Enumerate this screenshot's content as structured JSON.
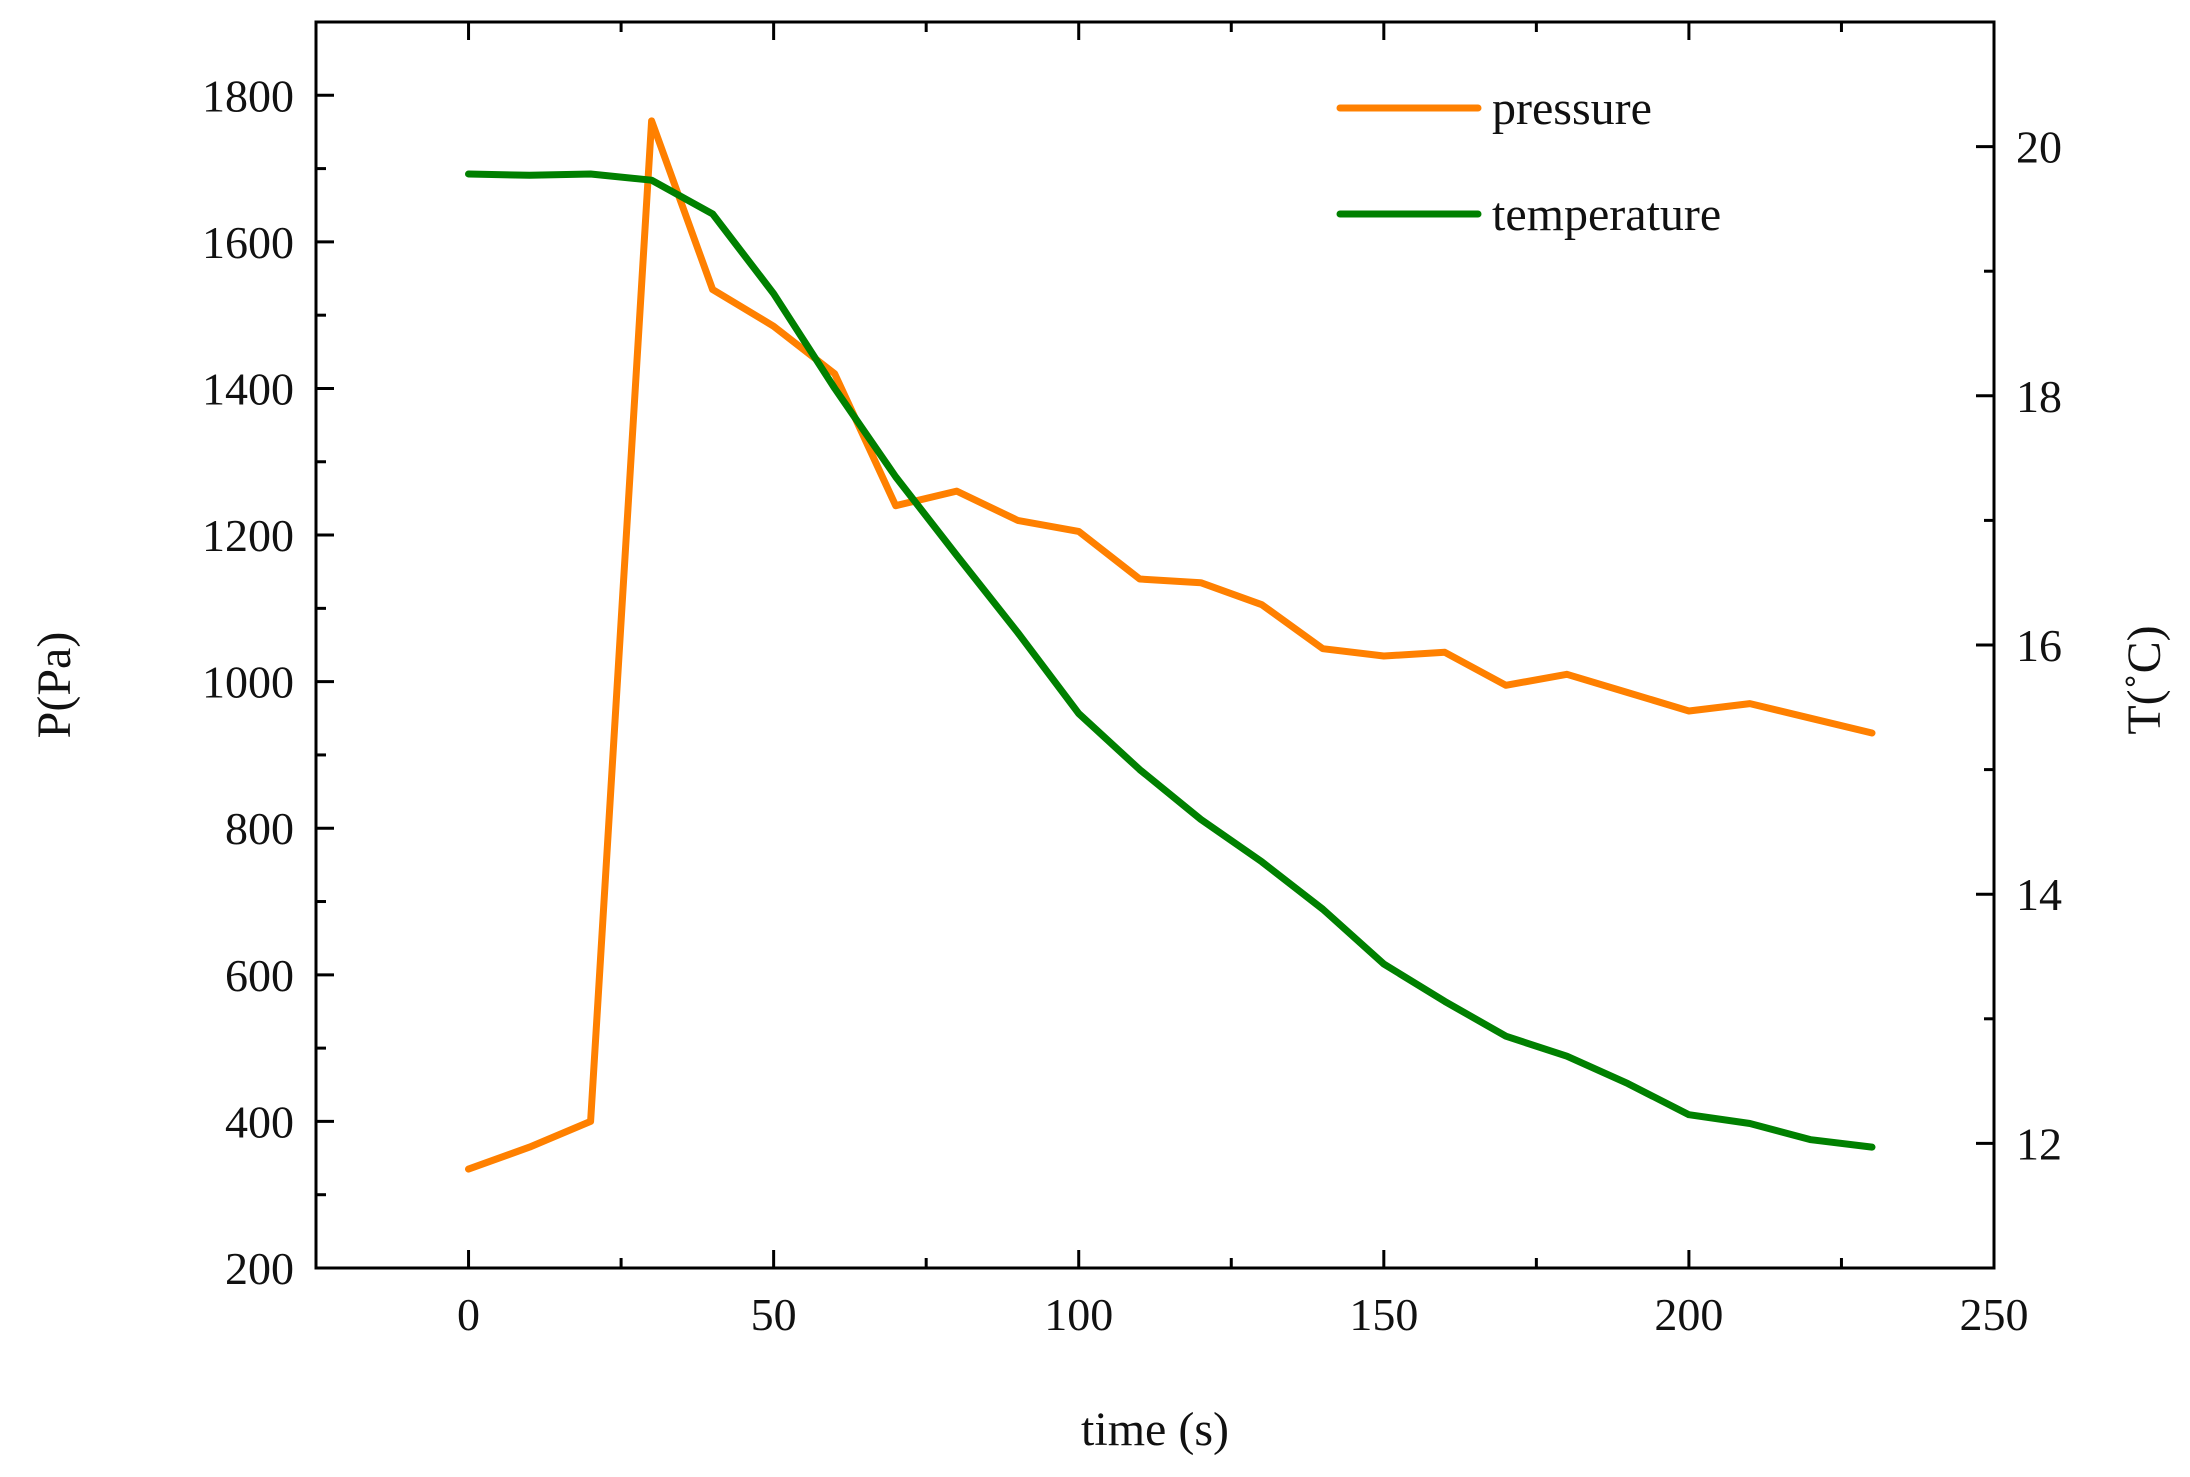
{
  "chart_data": {
    "type": "line",
    "title": "",
    "xlabel": "time (s)",
    "ylabel_left": "P(Pa)",
    "ylabel_right": "T(˚C)",
    "xlim": [
      -25,
      250
    ],
    "ylim_left": [
      200,
      1900
    ],
    "ylim_right": [
      11,
      21
    ],
    "x_ticks": [
      0,
      50,
      100,
      150,
      200,
      250
    ],
    "x_minor_ticks": [
      25,
      75,
      125,
      175,
      225
    ],
    "y_left_ticks": [
      200,
      400,
      600,
      800,
      1000,
      1200,
      1400,
      1600,
      1800
    ],
    "y_left_minor_ticks": [
      300,
      500,
      700,
      900,
      1100,
      1300,
      1500,
      1700
    ],
    "y_right_ticks": [
      12,
      14,
      16,
      18,
      20
    ],
    "y_right_minor_ticks": [
      13,
      15,
      17,
      19
    ],
    "grid": false,
    "legend": "top-right",
    "x": [
      0,
      10,
      20,
      30,
      40,
      50,
      60,
      70,
      80,
      90,
      100,
      110,
      120,
      130,
      140,
      150,
      160,
      170,
      180,
      190,
      200,
      210,
      220,
      230
    ],
    "series": [
      {
        "name": "pressure",
        "axis": "left",
        "color": "#FF8000",
        "values": [
          335,
          365,
          400,
          1765,
          1535,
          1485,
          1420,
          1240,
          1260,
          1220,
          1205,
          1140,
          1135,
          1105,
          1045,
          1035,
          1040,
          995,
          1010,
          985,
          960,
          970,
          950,
          930
        ]
      },
      {
        "name": "temperature",
        "axis": "right",
        "color": "#008000",
        "values": [
          19.78,
          19.77,
          19.78,
          19.73,
          19.46,
          18.82,
          18.06,
          17.35,
          16.72,
          16.1,
          15.45,
          15.0,
          14.6,
          14.26,
          13.88,
          13.44,
          13.14,
          12.86,
          12.7,
          12.48,
          12.23,
          12.16,
          12.03,
          11.97
        ]
      }
    ]
  }
}
